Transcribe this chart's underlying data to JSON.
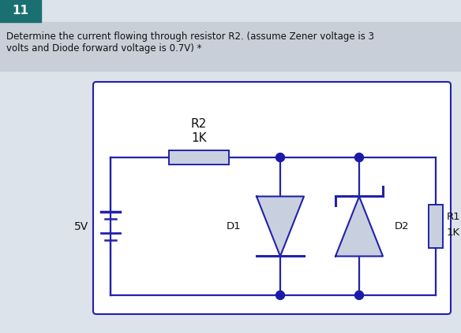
{
  "bg_color": "#dce3ea",
  "title_bg": "#1a7070",
  "title_text": "11",
  "title_color": "#ffffff",
  "question_text": "Determine the current flowing through resistor R2. (assume Zener voltage is 3\nvolts and Diode forward voltage is 0.7V) *",
  "question_bg": "#c8cfd8",
  "wire_color": "#2222aa",
  "dot_color": "#1a1aaa",
  "component_fill": "#c8d0e0",
  "label_color": "#111111",
  "circuit_border": "#2222aa",
  "supply_label": "5V",
  "r2_label": "R2",
  "r2_sub": "1K",
  "r1_label": "R1",
  "r1_sub": "1K",
  "d1_label": "D1",
  "d2_label": "D2"
}
